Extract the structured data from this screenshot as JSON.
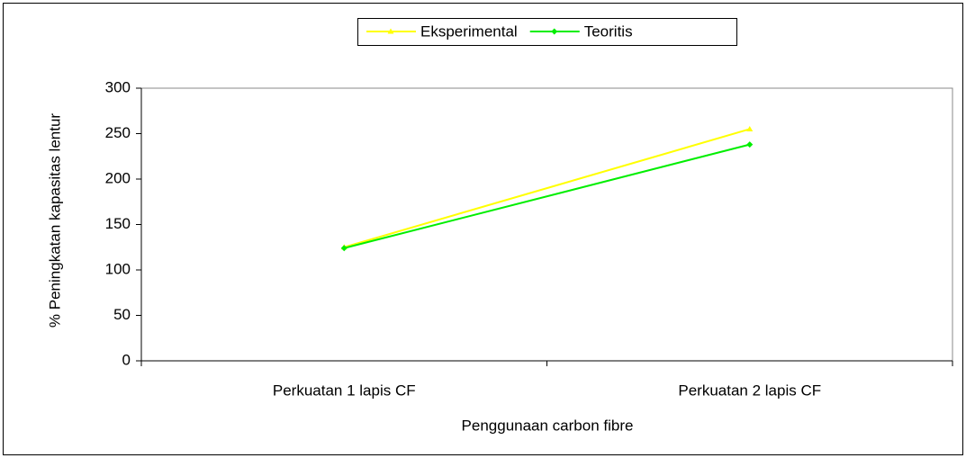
{
  "chart_data": {
    "type": "line",
    "xlabel": "Penggunaan carbon fibre",
    "ylabel": "% Peningkatan kapasitas lentur",
    "categories": [
      "Perkuatan 1 lapis CF",
      "Perkuatan 2 lapis CF"
    ],
    "series": [
      {
        "name": "Eksperimental",
        "color": "#ffff00",
        "marker": "triangle",
        "values": [
          125,
          255
        ]
      },
      {
        "name": "Teoritis",
        "color": "#00ee00",
        "marker": "diamond",
        "values": [
          124,
          238
        ]
      }
    ],
    "ylim": [
      0,
      300
    ],
    "yticks": [
      0,
      50,
      100,
      150,
      200,
      250,
      300
    ],
    "grid": false,
    "legend": "top"
  }
}
